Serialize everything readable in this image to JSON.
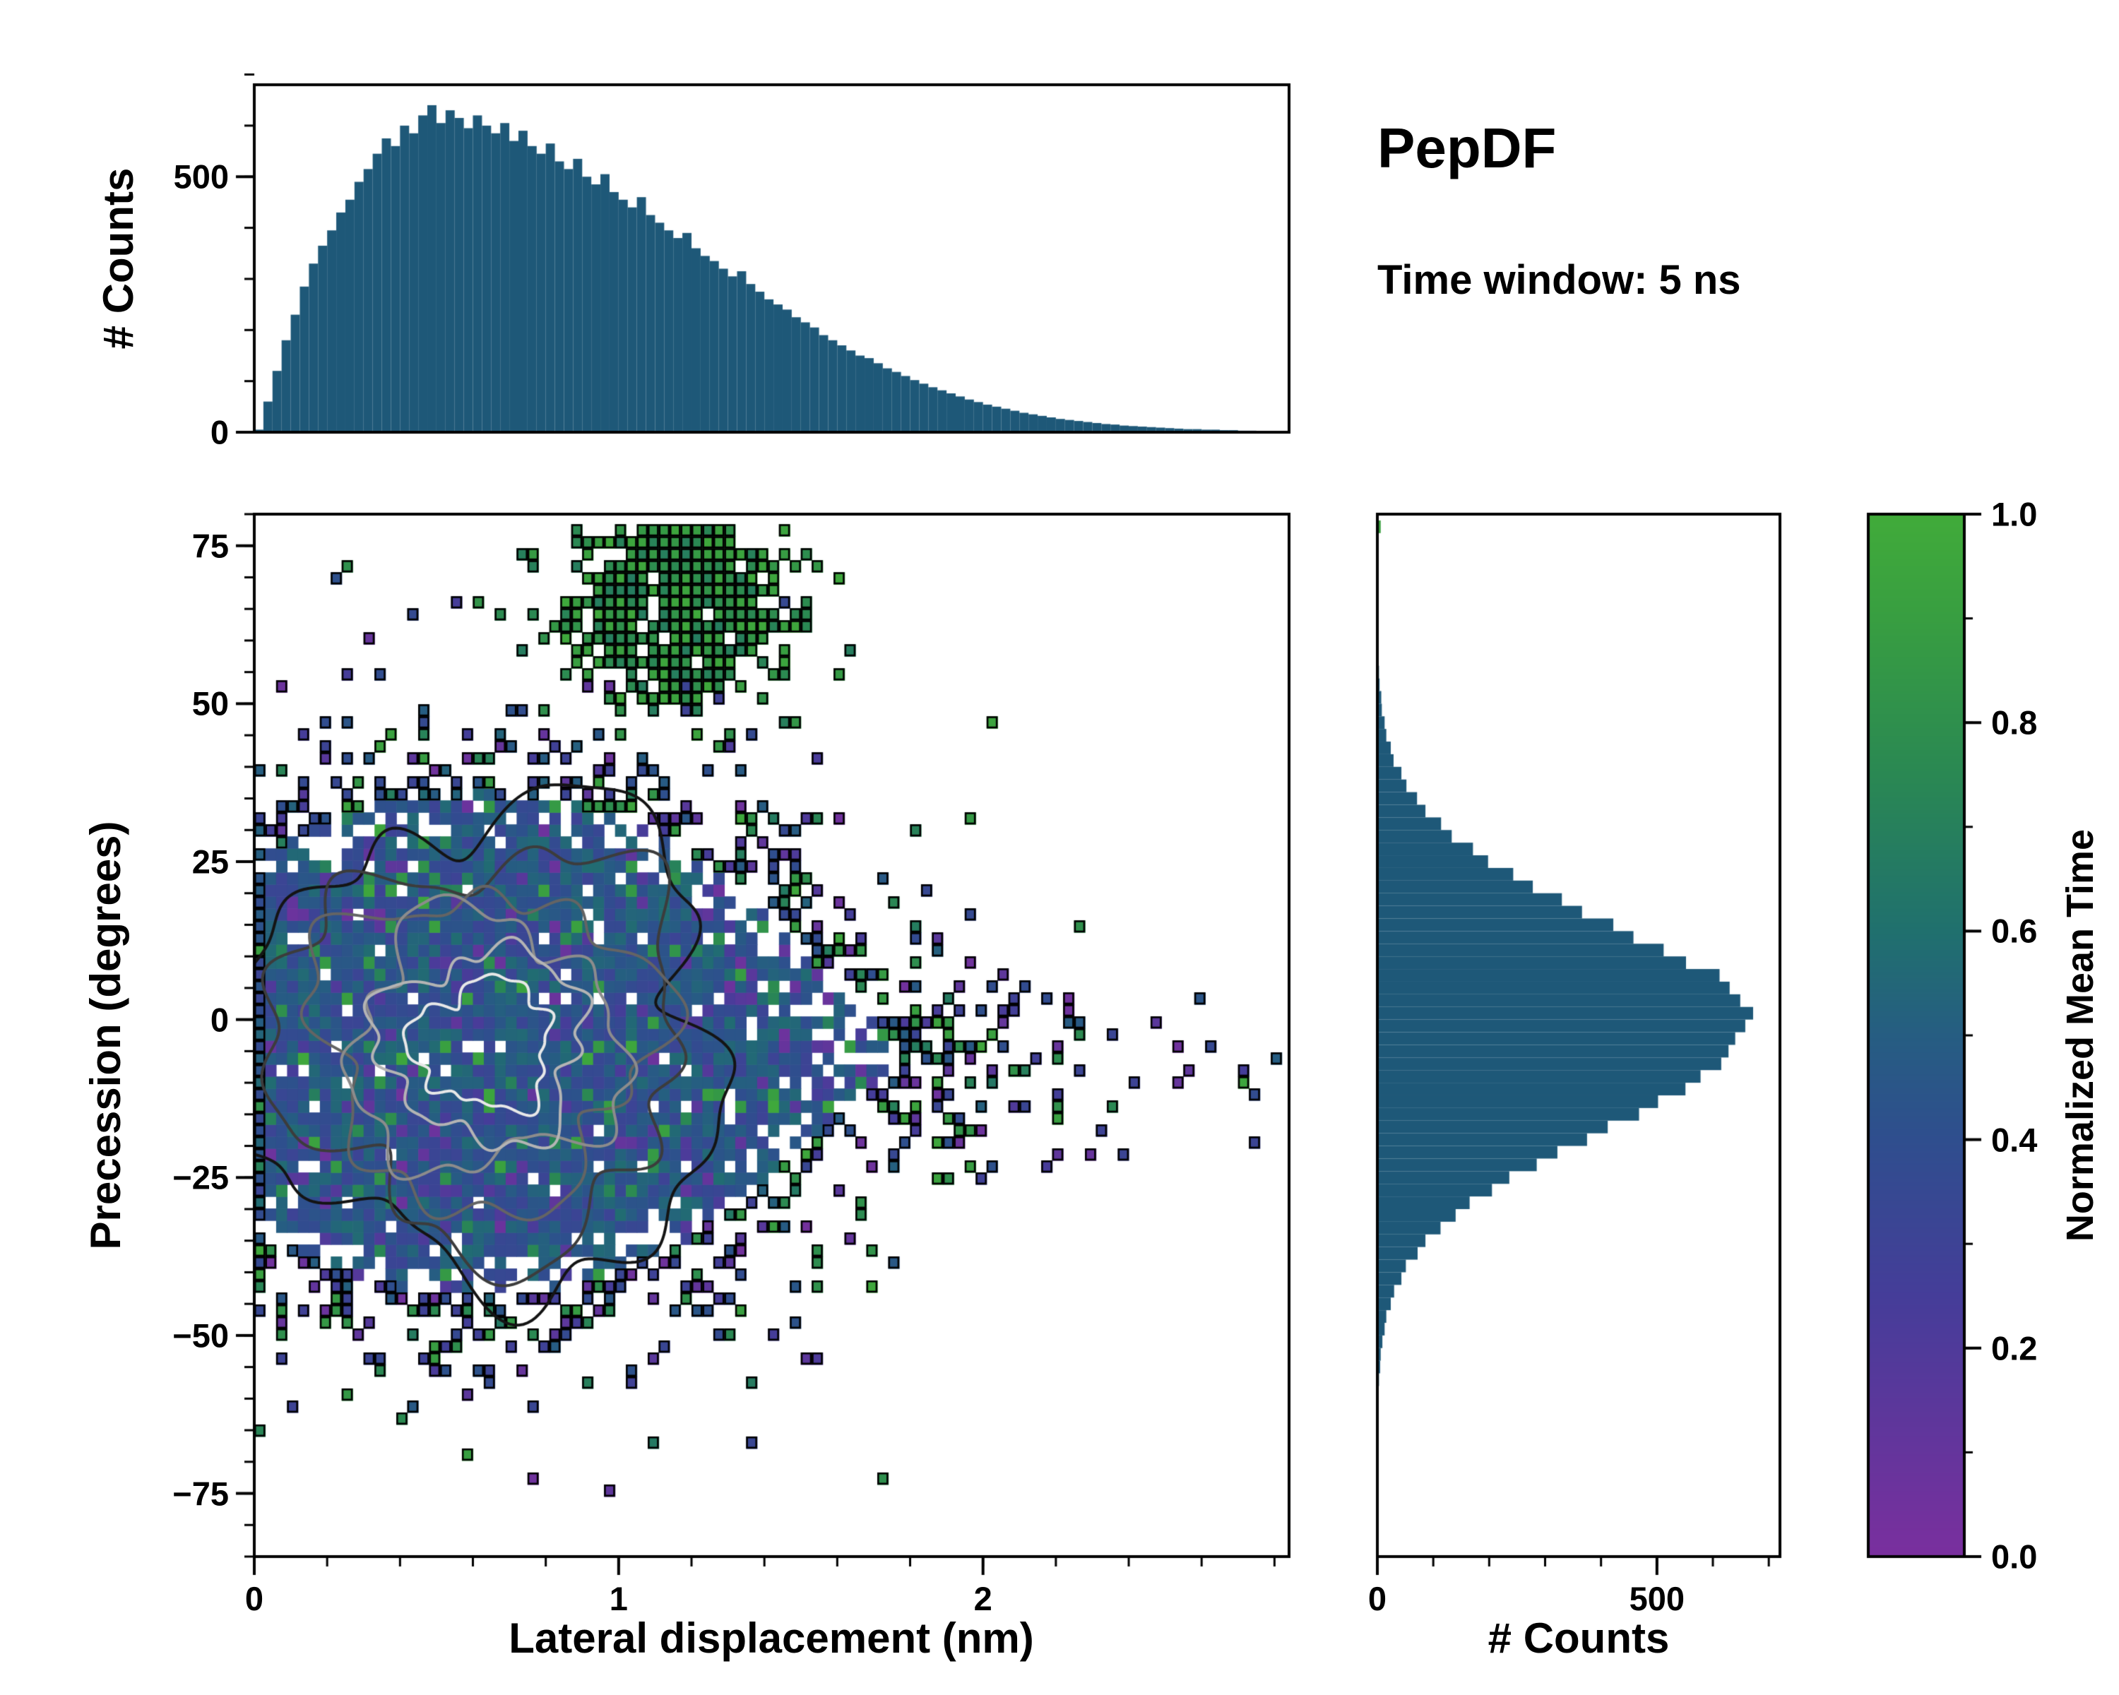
{
  "header": {
    "title": "PepDF",
    "subtitle": "Time window: 5 ns"
  },
  "colors": {
    "background": "#ffffff",
    "axis": "#000000",
    "hist_fill": "#1e5878",
    "colormap_stops": [
      [
        0.0,
        "#7a2f9e"
      ],
      [
        0.25,
        "#453d99"
      ],
      [
        0.4,
        "#2f4e8e"
      ],
      [
        0.5,
        "#265d82"
      ],
      [
        0.6,
        "#20706e"
      ],
      [
        0.75,
        "#2a8853"
      ],
      [
        0.9,
        "#389e41"
      ],
      [
        1.0,
        "#41ab3a"
      ]
    ],
    "contour_colors": [
      "#141414",
      "#3c3c3c",
      "#646464",
      "#8c8c8c",
      "#b4b4b4",
      "#e8e8e8"
    ]
  },
  "chart_data": [
    {
      "id": "top_histogram",
      "type": "bar",
      "ylabel": "# Counts",
      "x_range": [
        0,
        2.84
      ],
      "y_range": [
        0,
        680
      ],
      "yticks": [
        {
          "v": 0,
          "label": "0"
        },
        {
          "v": 500,
          "label": "500"
        }
      ],
      "y_minor_step": 100,
      "bin_start": 0,
      "bin_width": 0.025,
      "values": [
        5,
        60,
        120,
        180,
        230,
        285,
        330,
        365,
        395,
        430,
        455,
        490,
        515,
        545,
        575,
        560,
        600,
        585,
        620,
        640,
        605,
        630,
        615,
        595,
        620,
        600,
        585,
        605,
        570,
        590,
        560,
        545,
        565,
        530,
        515,
        535,
        500,
        485,
        505,
        470,
        455,
        440,
        460,
        425,
        410,
        395,
        380,
        390,
        360,
        345,
        335,
        320,
        305,
        315,
        290,
        275,
        260,
        250,
        240,
        225,
        215,
        205,
        190,
        180,
        170,
        160,
        150,
        145,
        135,
        125,
        118,
        110,
        102,
        95,
        88,
        82,
        76,
        70,
        64,
        59,
        54,
        50,
        46,
        42,
        38,
        35,
        32,
        29,
        26,
        24,
        22,
        20,
        18,
        16,
        15,
        13,
        12,
        11,
        10,
        9,
        8,
        7,
        6,
        6,
        5,
        5,
        4,
        4,
        3,
        3,
        2,
        2
      ]
    },
    {
      "id": "main_density_map",
      "type": "heatmap",
      "xlabel": "Lateral displacement (nm)",
      "ylabel": "Precession (degrees)",
      "x_range": [
        0,
        2.84
      ],
      "y_range": [
        -85,
        80
      ],
      "xticks": [
        {
          "v": 0,
          "label": "0"
        },
        {
          "v": 1,
          "label": "1"
        },
        {
          "v": 2,
          "label": "2"
        }
      ],
      "yticks": [
        {
          "v": -75,
          "label": "−75"
        },
        {
          "v": -50,
          "label": "−50"
        },
        {
          "v": -25,
          "label": "−25"
        },
        {
          "v": 0,
          "label": "0"
        },
        {
          "v": 25,
          "label": "25"
        },
        {
          "v": 50,
          "label": "50"
        },
        {
          "v": 75,
          "label": "75"
        }
      ],
      "x_minor_step": 0.2,
      "y_minor_step": 5,
      "color_label": "Normalized Mean Time",
      "color_range": [
        0,
        1
      ],
      "colorbar_ticks": [
        {
          "v": 0,
          "label": "0.0"
        },
        {
          "v": 0.2,
          "label": "0.2"
        },
        {
          "v": 0.4,
          "label": "0.4"
        },
        {
          "v": 0.6,
          "label": "0.6"
        },
        {
          "v": 0.8,
          "label": "0.8"
        },
        {
          "v": 1,
          "label": "1.0"
        }
      ],
      "colorbar_minor_step": 0.1,
      "generation": {
        "note": "2D-binned trajectory map colored by normalized mean time; cell pattern approximated procedurally from the visible density",
        "seed": 1337,
        "cell_dx": 0.03,
        "cell_dy": 1.9,
        "core_blob": {
          "cx": 0.62,
          "cy": -4,
          "sx": 0.46,
          "sy": 21,
          "amp": 3.2
        },
        "right_tail": {
          "cx": 1.5,
          "cy": -6,
          "sx": 0.75,
          "sy": 10,
          "amp": 0.35
        },
        "green_cluster": {
          "cx": 1.18,
          "cy": 66,
          "sx": 0.17,
          "sy": 9,
          "amp": 2.2,
          "value_min": 0.68,
          "value_max": 0.98
        },
        "white_hole_fraction": 0.05,
        "contours": {
          "cx": 0.63,
          "cy": -4,
          "rx": [
            0.68,
            0.56,
            0.46,
            0.37,
            0.28,
            0.19
          ],
          "ry": [
            37,
            31,
            25,
            20,
            15,
            10
          ]
        }
      }
    },
    {
      "id": "right_histogram",
      "type": "bar_horizontal",
      "xlabel": "# Counts",
      "x_range": [
        0,
        720
      ],
      "y_range": [
        -85,
        80
      ],
      "xticks": [
        {
          "v": 0,
          "label": "0"
        },
        {
          "v": 500,
          "label": "500"
        }
      ],
      "x_minor_step": 100,
      "bin_width": 2,
      "bins": [
        [
          -60,
          2
        ],
        [
          -58,
          3
        ],
        [
          -56,
          5
        ],
        [
          -54,
          6
        ],
        [
          -52,
          9
        ],
        [
          -50,
          13
        ],
        [
          -48,
          16
        ],
        [
          -46,
          24
        ],
        [
          -44,
          30
        ],
        [
          -42,
          43
        ],
        [
          -40,
          51
        ],
        [
          -38,
          72
        ],
        [
          -36,
          86
        ],
        [
          -34,
          113
        ],
        [
          -32,
          140
        ],
        [
          -30,
          165
        ],
        [
          -28,
          205
        ],
        [
          -26,
          236
        ],
        [
          -24,
          285
        ],
        [
          -22,
          322
        ],
        [
          -20,
          375
        ],
        [
          -18,
          412
        ],
        [
          -16,
          468
        ],
        [
          -14,
          502
        ],
        [
          -12,
          551
        ],
        [
          -10,
          578
        ],
        [
          -8,
          615
        ],
        [
          -6,
          628
        ],
        [
          -4,
          640
        ],
        [
          -2,
          658
        ],
        [
          0,
          672
        ],
        [
          2,
          649
        ],
        [
          4,
          630
        ],
        [
          6,
          612
        ],
        [
          8,
          552
        ],
        [
          10,
          512
        ],
        [
          12,
          458
        ],
        [
          14,
          422
        ],
        [
          16,
          366
        ],
        [
          18,
          330
        ],
        [
          20,
          278
        ],
        [
          22,
          243
        ],
        [
          24,
          198
        ],
        [
          26,
          171
        ],
        [
          28,
          133
        ],
        [
          30,
          114
        ],
        [
          32,
          86
        ],
        [
          34,
          71
        ],
        [
          36,
          52
        ],
        [
          38,
          43
        ],
        [
          40,
          29
        ],
        [
          42,
          24
        ],
        [
          44,
          16
        ],
        [
          46,
          13
        ],
        [
          48,
          8
        ],
        [
          50,
          7
        ],
        [
          52,
          4
        ],
        [
          54,
          3
        ],
        [
          56,
          2
        ],
        [
          58,
          2
        ],
        [
          60,
          1
        ],
        [
          62,
          1
        ]
      ],
      "outlier_bins": [
        [
          68,
          2,
          null
        ],
        [
          77,
          6,
          "#3a9e3f"
        ]
      ]
    }
  ]
}
